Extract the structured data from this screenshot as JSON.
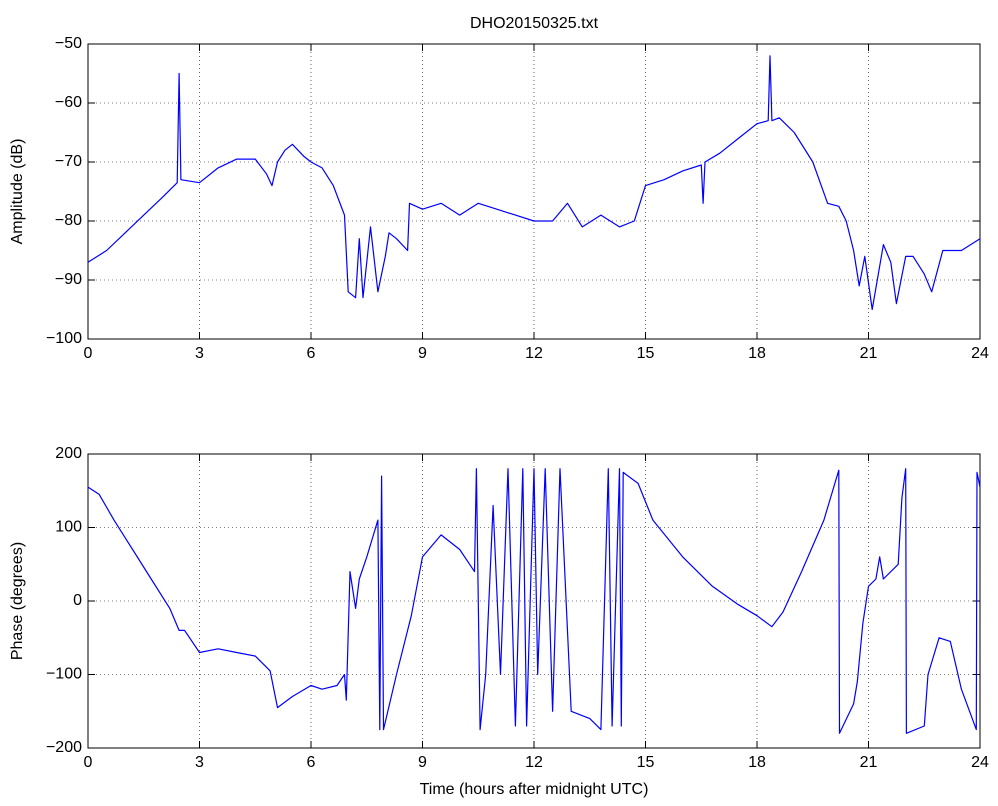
{
  "chart_data": [
    {
      "type": "line",
      "title": "DHO20150325.txt",
      "ylabel": "Amplitude (dB)",
      "x": [
        0,
        0.5,
        1,
        1.5,
        2,
        2.4,
        2.45,
        2.5,
        3,
        3.5,
        4,
        4.5,
        4.8,
        4.95,
        5.1,
        5.3,
        5.5,
        5.8,
        6,
        6.3,
        6.6,
        6.9,
        7.0,
        7.2,
        7.3,
        7.4,
        7.6,
        7.8,
        8.0,
        8.1,
        8.3,
        8.6,
        8.65,
        9,
        9.5,
        10,
        10.5,
        11,
        11.5,
        12,
        12.5,
        12.9,
        13.3,
        13.8,
        14.3,
        14.7,
        15,
        15.5,
        16,
        16.5,
        16.55,
        16.6,
        17,
        17.5,
        18,
        18.3,
        18.35,
        18.4,
        18.6,
        19,
        19.5,
        19.9,
        20.2,
        20.4,
        20.6,
        20.75,
        20.9,
        21.1,
        21.4,
        21.6,
        21.75,
        22,
        22.2,
        22.5,
        22.7,
        23,
        23.5,
        24
      ],
      "series": [
        {
          "color": "#0000ff",
          "values": [
            -87,
            -85,
            -82,
            -79,
            -76,
            -73.5,
            -55,
            -73,
            -73.5,
            -71,
            -69.5,
            -69.5,
            -72,
            -74,
            -70,
            -68,
            -67,
            -69,
            -70,
            -71,
            -74,
            -79,
            -92,
            -93,
            -83,
            -93,
            -81,
            -92,
            -86,
            -82,
            -83,
            -85,
            -77,
            -78,
            -77,
            -79,
            -77,
            -78,
            -79,
            -80,
            -80,
            -77,
            -81,
            -79,
            -81,
            -80,
            -74,
            -73,
            -71.5,
            -70.5,
            -77,
            -70,
            -68.5,
            -66,
            -63.5,
            -63,
            -52,
            -63,
            -62.5,
            -65,
            -70,
            -77,
            -77.5,
            -80,
            -85,
            -91,
            -86,
            -95,
            -84,
            -87,
            -94,
            -86,
            -86,
            -89,
            -92,
            -85,
            -85,
            -83
          ]
        }
      ],
      "xlim": [
        0,
        24
      ],
      "xticks": [
        0,
        3,
        6,
        9,
        12,
        15,
        18,
        21,
        24
      ],
      "ylim": [
        -100,
        -50
      ],
      "yticks": [
        -100,
        -90,
        -80,
        -70,
        -60,
        -50
      ],
      "grid": true
    },
    {
      "type": "line",
      "xlabel": "Time (hours after midnight UTC)",
      "ylabel": "Phase (degrees)",
      "x": [
        0,
        0.3,
        0.7,
        1.2,
        1.7,
        2.2,
        2.45,
        2.6,
        3,
        3.5,
        4,
        4.5,
        4.9,
        5.1,
        5.5,
        6,
        6.3,
        6.7,
        6.9,
        6.95,
        7.05,
        7.2,
        7.3,
        7.5,
        7.8,
        7.85,
        7.9,
        7.95,
        8.3,
        8.7,
        9,
        9.5,
        10,
        10.4,
        10.45,
        10.55,
        10.7,
        10.9,
        11.1,
        11.3,
        11.5,
        11.7,
        11.8,
        12,
        12.1,
        12.3,
        12.5,
        12.7,
        13,
        13.5,
        13.8,
        14,
        14.1,
        14.3,
        14.35,
        14.4,
        14.8,
        15.2,
        16,
        16.8,
        17.5,
        18,
        18.4,
        18.7,
        19.2,
        19.8,
        20.2,
        20.22,
        20.6,
        20.7,
        20.85,
        21,
        21.2,
        21.3,
        21.4,
        21.8,
        21.9,
        22,
        22.02,
        22.5,
        22.6,
        22.9,
        23.2,
        23.5,
        23.9,
        23.92,
        24
      ],
      "series": [
        {
          "color": "#0000ff",
          "values": [
            155,
            145,
            110,
            70,
            30,
            -10,
            -40,
            -40,
            -70,
            -65,
            -70,
            -75,
            -95,
            -145,
            -130,
            -115,
            -120,
            -115,
            -100,
            -135,
            40,
            -10,
            30,
            60,
            110,
            -175,
            170,
            -175,
            -100,
            -20,
            60,
            90,
            70,
            40,
            180,
            -175,
            -100,
            130,
            -100,
            180,
            -170,
            180,
            -170,
            180,
            -100,
            180,
            -150,
            180,
            -150,
            -160,
            -175,
            180,
            -170,
            180,
            -170,
            175,
            160,
            110,
            60,
            20,
            -5,
            -20,
            -35,
            -15,
            40,
            110,
            178,
            -180,
            -140,
            -110,
            -30,
            20,
            30,
            60,
            30,
            50,
            140,
            180,
            -180,
            -170,
            -100,
            -50,
            -55,
            -120,
            -175,
            175,
            155
          ]
        }
      ],
      "xlim": [
        0,
        24
      ],
      "xticks": [
        0,
        3,
        6,
        9,
        12,
        15,
        18,
        21,
        24
      ],
      "ylim": [
        -200,
        200
      ],
      "yticks": [
        -200,
        -100,
        0,
        100,
        200
      ],
      "grid": true
    }
  ]
}
